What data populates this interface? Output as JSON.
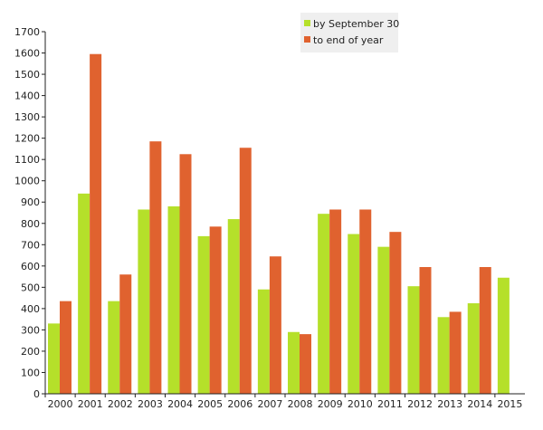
{
  "chart_data": {
    "type": "bar",
    "categories": [
      "2000",
      "2001",
      "2002",
      "2003",
      "2004",
      "2005",
      "2006",
      "2007",
      "2008",
      "2009",
      "2010",
      "2011",
      "2012",
      "2013",
      "2014",
      "2015"
    ],
    "series": [
      {
        "name": "by September 30",
        "color": "#b5e02a",
        "values": [
          330,
          940,
          435,
          865,
          880,
          740,
          820,
          490,
          290,
          845,
          750,
          690,
          505,
          360,
          425,
          545
        ]
      },
      {
        "name": "to end of year",
        "color": "#e0622f",
        "values": [
          435,
          1595,
          560,
          1185,
          1125,
          785,
          1155,
          645,
          280,
          865,
          865,
          760,
          595,
          385,
          595,
          null
        ]
      }
    ],
    "ylim": [
      0,
      1700
    ],
    "yticks": [
      0,
      100,
      200,
      300,
      400,
      500,
      600,
      700,
      800,
      900,
      1000,
      1100,
      1200,
      1300,
      1400,
      1500,
      1600,
      1700
    ],
    "grid": false,
    "legend_position": "top-center",
    "title": "",
    "xlabel": "",
    "ylabel": ""
  }
}
